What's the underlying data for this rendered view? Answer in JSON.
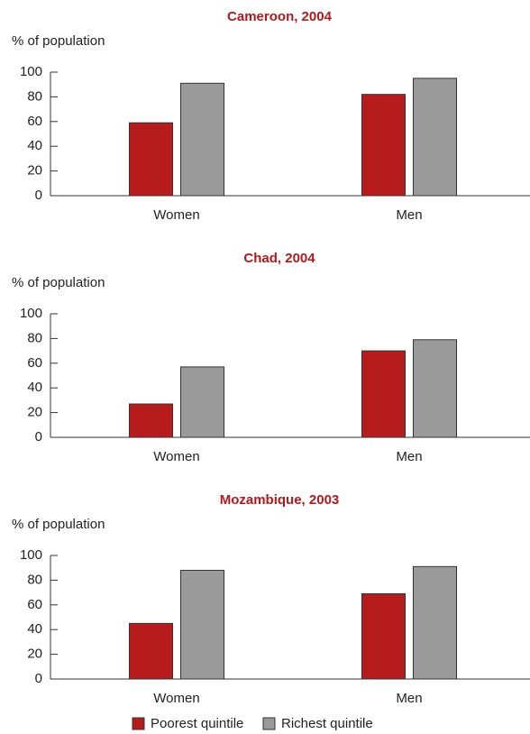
{
  "chart_data": [
    {
      "type": "bar",
      "title": "Cameroon, 2004",
      "y_label": "% of population",
      "categories": [
        "Women",
        "Men"
      ],
      "series": [
        {
          "color": "#b71c1c",
          "values": [
            59,
            82
          ]
        },
        {
          "color": "#9a9a9a",
          "values": [
            91,
            95
          ]
        }
      ],
      "ylim": [
        0,
        100
      ],
      "yticks": [
        0,
        20,
        40,
        60,
        80,
        100
      ]
    },
    {
      "type": "bar",
      "title": "Chad, 2004",
      "y_label": "% of population",
      "categories": [
        "Women",
        "Men"
      ],
      "series": [
        {
          "color": "#b71c1c",
          "values": [
            27,
            70
          ]
        },
        {
          "color": "#9a9a9a",
          "values": [
            57,
            79
          ]
        }
      ],
      "ylim": [
        0,
        100
      ],
      "yticks": [
        0,
        20,
        40,
        60,
        80,
        100
      ]
    },
    {
      "type": "bar",
      "title": "Mozambique, 2003",
      "y_label": "% of population",
      "categories": [
        "Women",
        "Men"
      ],
      "series": [
        {
          "name": "Poorest quintile",
          "color": "#b71c1c",
          "values": [
            45,
            69
          ]
        },
        {
          "name": "Richest quintile",
          "color": "#9a9a9a",
          "values": [
            88,
            91
          ]
        }
      ],
      "ylim": [
        0,
        100
      ],
      "yticks": [
        0,
        20,
        40,
        60,
        80,
        100
      ]
    }
  ]
}
